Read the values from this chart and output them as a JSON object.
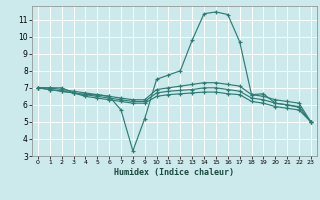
{
  "xlabel": "Humidex (Indice chaleur)",
  "xlim": [
    -0.5,
    23.5
  ],
  "ylim": [
    3,
    11.8
  ],
  "yticks": [
    3,
    4,
    5,
    6,
    7,
    8,
    9,
    10,
    11
  ],
  "xticks": [
    0,
    1,
    2,
    3,
    4,
    5,
    6,
    7,
    8,
    9,
    10,
    11,
    12,
    13,
    14,
    15,
    16,
    17,
    18,
    19,
    20,
    21,
    22,
    23
  ],
  "bg_color": "#cce9ec",
  "grid_color": "#ffffff",
  "line_color": "#2d7d74",
  "lines": [
    {
      "x": [
        0,
        1,
        2,
        3,
        4,
        5,
        6,
        7,
        8,
        9,
        10,
        11,
        12,
        13,
        14,
        15,
        16,
        17,
        18,
        19,
        20,
        21,
        22,
        23
      ],
      "y": [
        7.0,
        7.0,
        7.0,
        6.7,
        6.6,
        6.6,
        6.5,
        5.7,
        3.3,
        5.2,
        7.5,
        7.75,
        8.0,
        9.8,
        11.35,
        11.45,
        11.3,
        9.7,
        6.6,
        6.65,
        6.1,
        6.0,
        5.9,
        5.0
      ]
    },
    {
      "x": [
        0,
        1,
        2,
        3,
        4,
        5,
        6,
        7,
        8,
        9,
        10,
        11,
        12,
        13,
        14,
        15,
        16,
        17,
        18,
        19,
        20,
        21,
        22,
        23
      ],
      "y": [
        7.0,
        7.0,
        6.9,
        6.8,
        6.7,
        6.6,
        6.5,
        6.4,
        6.3,
        6.3,
        6.9,
        7.0,
        7.1,
        7.2,
        7.3,
        7.3,
        7.2,
        7.1,
        6.6,
        6.5,
        6.3,
        6.2,
        6.1,
        5.0
      ]
    },
    {
      "x": [
        0,
        1,
        2,
        3,
        4,
        5,
        6,
        7,
        8,
        9,
        10,
        11,
        12,
        13,
        14,
        15,
        16,
        17,
        18,
        19,
        20,
        21,
        22,
        23
      ],
      "y": [
        7.0,
        6.9,
        6.8,
        6.7,
        6.6,
        6.5,
        6.4,
        6.3,
        6.2,
        6.2,
        6.7,
        6.8,
        6.85,
        6.9,
        7.0,
        7.0,
        6.9,
        6.8,
        6.4,
        6.3,
        6.1,
        6.0,
        5.85,
        5.0
      ]
    },
    {
      "x": [
        0,
        1,
        2,
        3,
        4,
        5,
        6,
        7,
        8,
        9,
        10,
        11,
        12,
        13,
        14,
        15,
        16,
        17,
        18,
        19,
        20,
        21,
        22,
        23
      ],
      "y": [
        7.0,
        6.9,
        6.8,
        6.7,
        6.5,
        6.4,
        6.3,
        6.2,
        6.1,
        6.1,
        6.5,
        6.6,
        6.65,
        6.7,
        6.75,
        6.75,
        6.65,
        6.6,
        6.2,
        6.1,
        5.9,
        5.8,
        5.7,
        5.0
      ]
    }
  ]
}
